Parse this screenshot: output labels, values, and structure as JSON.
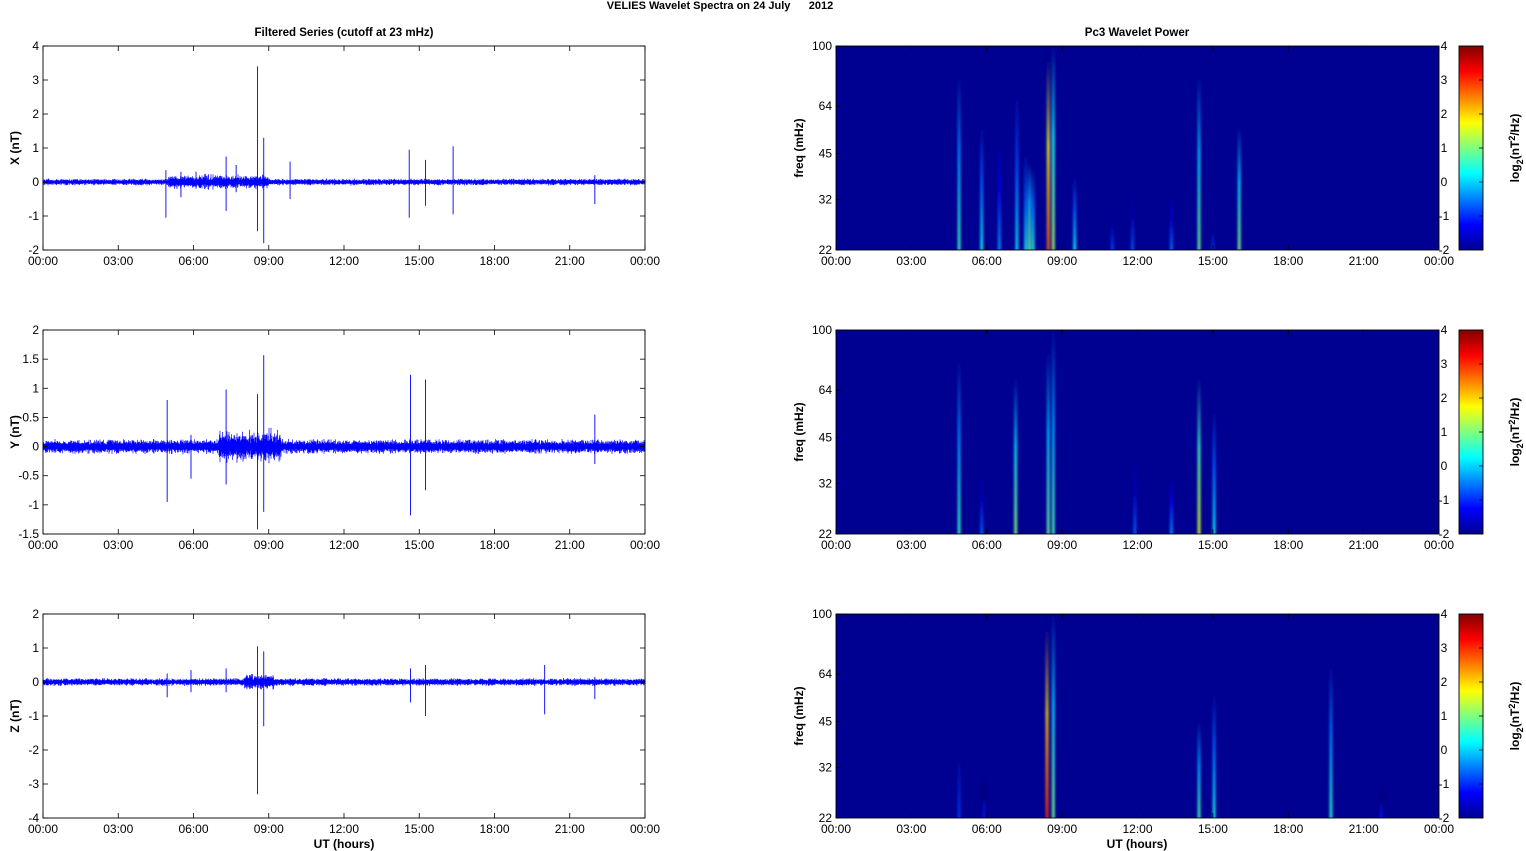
{
  "figure": {
    "suptitle": "VELIES Wavelet Spectra on 24 July      2012",
    "left_title": "Filtered Series (cutoff at 23 mHz)",
    "right_title": "Pc3 Wavelet Power",
    "xlabel": "UT (hours)"
  },
  "chart_data": [
    {
      "type": "line",
      "panel": "series-x",
      "ylabel": "X (nT)",
      "xlim": [
        0,
        24
      ],
      "ylim": [
        -2,
        4
      ],
      "x_ticks": [
        "00:00",
        "03:00",
        "06:00",
        "09:00",
        "12:00",
        "15:00",
        "18:00",
        "21:00",
        "00:00"
      ],
      "y_ticks": [
        "-2",
        "-1",
        "0",
        "1",
        "2",
        "3",
        "4"
      ],
      "y_tick_values": [
        -2,
        -1,
        0,
        1,
        2,
        3,
        4
      ],
      "noise_amplitude": 0.07,
      "color": "#0000ff",
      "spikes": [
        {
          "t": 4.9,
          "up": 0.35,
          "down": -1.05
        },
        {
          "t": 5.5,
          "up": 0.3,
          "down": -0.45
        },
        {
          "t": 6.1,
          "up": 0.3,
          "down": -0.2
        },
        {
          "t": 7.3,
          "up": 0.75,
          "down": -0.85
        },
        {
          "t": 7.7,
          "up": 0.5,
          "down": -0.3
        },
        {
          "t": 8.55,
          "up": 3.4,
          "down": -1.45
        },
        {
          "t": 8.8,
          "up": 1.3,
          "down": -1.8
        },
        {
          "t": 9.85,
          "up": 0.6,
          "down": -0.5
        },
        {
          "t": 14.6,
          "up": 0.95,
          "down": -1.05
        },
        {
          "t": 15.25,
          "up": 0.65,
          "down": -0.7
        },
        {
          "t": 16.35,
          "up": 1.05,
          "down": -0.95
        },
        {
          "t": 22.0,
          "up": 0.2,
          "down": -0.65
        }
      ],
      "disturbed_interval": [
        5.0,
        9.0
      ]
    },
    {
      "type": "line",
      "panel": "series-y",
      "ylabel": "Y (nT)",
      "xlim": [
        0,
        24
      ],
      "ylim": [
        -1.5,
        2
      ],
      "x_ticks": [
        "00:00",
        "03:00",
        "06:00",
        "09:00",
        "12:00",
        "15:00",
        "18:00",
        "21:00",
        "00:00"
      ],
      "y_ticks": [
        "-1.5",
        "-1",
        "-0.5",
        "0",
        "0.5",
        "1",
        "1.5",
        "2"
      ],
      "y_tick_values": [
        -1.5,
        -1,
        -0.5,
        0,
        0.5,
        1,
        1.5,
        2
      ],
      "noise_amplitude": 0.09,
      "color": "#0000ff",
      "spikes": [
        {
          "t": 4.95,
          "up": 0.8,
          "down": -0.95
        },
        {
          "t": 5.9,
          "up": 0.2,
          "down": -0.55
        },
        {
          "t": 7.3,
          "up": 0.98,
          "down": -0.65
        },
        {
          "t": 8.55,
          "up": 0.9,
          "down": -1.42
        },
        {
          "t": 8.8,
          "up": 1.57,
          "down": -1.12
        },
        {
          "t": 14.65,
          "up": 1.23,
          "down": -1.18
        },
        {
          "t": 15.25,
          "up": 1.15,
          "down": -0.75
        },
        {
          "t": 22.0,
          "up": 0.55,
          "down": -0.3
        }
      ],
      "disturbed_interval": [
        7.0,
        9.5
      ]
    },
    {
      "type": "line",
      "panel": "series-z",
      "ylabel": "Z (nT)",
      "xlim": [
        0,
        24
      ],
      "ylim": [
        -4,
        2
      ],
      "x_ticks": [
        "00:00",
        "03:00",
        "06:00",
        "09:00",
        "12:00",
        "15:00",
        "18:00",
        "21:00",
        "00:00"
      ],
      "y_ticks": [
        "-4",
        "-3",
        "-2",
        "-1",
        "0",
        "1",
        "2"
      ],
      "y_tick_values": [
        -4,
        -3,
        -2,
        -1,
        0,
        1,
        2
      ],
      "noise_amplitude": 0.08,
      "color": "#0000ff",
      "spikes": [
        {
          "t": 4.95,
          "up": 0.25,
          "down": -0.45
        },
        {
          "t": 5.9,
          "up": 0.35,
          "down": -0.3
        },
        {
          "t": 7.3,
          "up": 0.4,
          "down": -0.3
        },
        {
          "t": 8.55,
          "up": 1.05,
          "down": -3.3
        },
        {
          "t": 8.8,
          "up": 0.9,
          "down": -1.3
        },
        {
          "t": 14.65,
          "up": 0.4,
          "down": -0.6
        },
        {
          "t": 15.25,
          "up": 0.5,
          "down": -1.0
        },
        {
          "t": 20.0,
          "up": 0.5,
          "down": -0.95
        },
        {
          "t": 22.0,
          "up": 0.15,
          "down": -0.5
        }
      ],
      "disturbed_interval": [
        8.0,
        9.2
      ]
    },
    {
      "type": "heatmap",
      "panel": "wavelet-x",
      "ylabel": "freq (mHz)",
      "colorbar_label": "log2(nT2/Hz)",
      "xlim": [
        0,
        24
      ],
      "ylim": [
        22,
        100
      ],
      "log_y": true,
      "clim": [
        -2,
        4
      ],
      "background_value": -1.9,
      "x_ticks": [
        "00:00",
        "03:00",
        "06:00",
        "09:00",
        "12:00",
        "15:00",
        "18:00",
        "21:00",
        "00:00"
      ],
      "y_ticks": [
        "22",
        "32",
        "45",
        "64",
        "100"
      ],
      "y_tick_values": [
        22,
        32,
        45,
        64,
        100
      ],
      "cbar_ticks": [
        "-2",
        "-1",
        "0",
        "1",
        "2",
        "3",
        "4"
      ],
      "streaks": [
        {
          "t": 4.9,
          "f_top": 80,
          "peak": 0.6
        },
        {
          "t": 5.8,
          "f_top": 55,
          "peak": 0.3
        },
        {
          "t": 6.5,
          "f_top": 50,
          "peak": -0.3
        },
        {
          "t": 7.2,
          "f_top": 70,
          "peak": 0.2
        },
        {
          "t": 7.55,
          "f_top": 45,
          "peak": 0.3
        },
        {
          "t": 7.7,
          "f_top": 42,
          "peak": 0.9
        },
        {
          "t": 7.85,
          "f_top": 40,
          "peak": 0.4
        },
        {
          "t": 8.45,
          "f_top": 90,
          "peak": 2.7
        },
        {
          "t": 8.65,
          "f_top": 100,
          "peak": 1.3
        },
        {
          "t": 9.5,
          "f_top": 38,
          "peak": 0.3
        },
        {
          "t": 11.0,
          "f_top": 30,
          "peak": -0.8
        },
        {
          "t": 11.8,
          "f_top": 34,
          "peak": -0.7
        },
        {
          "t": 13.35,
          "f_top": 33,
          "peak": -0.5
        },
        {
          "t": 14.45,
          "f_top": 80,
          "peak": 0.9
        },
        {
          "t": 15.0,
          "f_top": 28,
          "peak": -0.9
        },
        {
          "t": 16.05,
          "f_top": 55,
          "peak": 1.0
        }
      ]
    },
    {
      "type": "heatmap",
      "panel": "wavelet-y",
      "ylabel": "freq (mHz)",
      "colorbar_label": "log2(nT2/Hz)",
      "xlim": [
        0,
        24
      ],
      "ylim": [
        22,
        100
      ],
      "log_y": true,
      "clim": [
        -2,
        4
      ],
      "background_value": -1.9,
      "x_ticks": [
        "00:00",
        "03:00",
        "06:00",
        "09:00",
        "12:00",
        "15:00",
        "18:00",
        "21:00",
        "00:00"
      ],
      "y_ticks": [
        "22",
        "32",
        "45",
        "64",
        "100"
      ],
      "y_tick_values": [
        22,
        32,
        45,
        64,
        100
      ],
      "cbar_ticks": [
        "-2",
        "-1",
        "0",
        "1",
        "2",
        "3",
        "4"
      ],
      "streaks": [
        {
          "t": 4.9,
          "f_top": 80,
          "peak": 0.6
        },
        {
          "t": 5.8,
          "f_top": 35,
          "peak": -0.6
        },
        {
          "t": 7.15,
          "f_top": 70,
          "peak": 1.1
        },
        {
          "t": 8.45,
          "f_top": 85,
          "peak": 0.9
        },
        {
          "t": 8.65,
          "f_top": 100,
          "peak": 0.7
        },
        {
          "t": 11.9,
          "f_top": 38,
          "peak": -0.6
        },
        {
          "t": 13.35,
          "f_top": 34,
          "peak": -0.3
        },
        {
          "t": 14.45,
          "f_top": 70,
          "peak": 1.6
        },
        {
          "t": 15.05,
          "f_top": 55,
          "peak": 0.3
        }
      ]
    },
    {
      "type": "heatmap",
      "panel": "wavelet-z",
      "ylabel": "freq (mHz)",
      "colorbar_label": "log2(nT2/Hz)",
      "xlim": [
        0,
        24
      ],
      "ylim": [
        22,
        100
      ],
      "log_y": true,
      "clim": [
        -2,
        4
      ],
      "background_value": -1.9,
      "x_ticks": [
        "00:00",
        "03:00",
        "06:00",
        "09:00",
        "12:00",
        "15:00",
        "18:00",
        "21:00",
        "00:00"
      ],
      "y_ticks": [
        "22",
        "32",
        "45",
        "64",
        "100"
      ],
      "y_tick_values": [
        22,
        32,
        45,
        64,
        100
      ],
      "cbar_ticks": [
        "-2",
        "-1",
        "0",
        "1",
        "2",
        "3",
        "4"
      ],
      "streaks": [
        {
          "t": 4.9,
          "f_top": 50,
          "peak": -0.9
        },
        {
          "t": 5.9,
          "f_top": 30,
          "peak": -1.1
        },
        {
          "t": 8.4,
          "f_top": 90,
          "peak": 3.0
        },
        {
          "t": 8.65,
          "f_top": 100,
          "peak": 1.0
        },
        {
          "t": 14.45,
          "f_top": 45,
          "peak": 0.7
        },
        {
          "t": 15.05,
          "f_top": 55,
          "peak": 0.4
        },
        {
          "t": 19.7,
          "f_top": 68,
          "peak": 0.5
        },
        {
          "t": 21.7,
          "f_top": 28,
          "peak": -1.1
        }
      ]
    }
  ]
}
